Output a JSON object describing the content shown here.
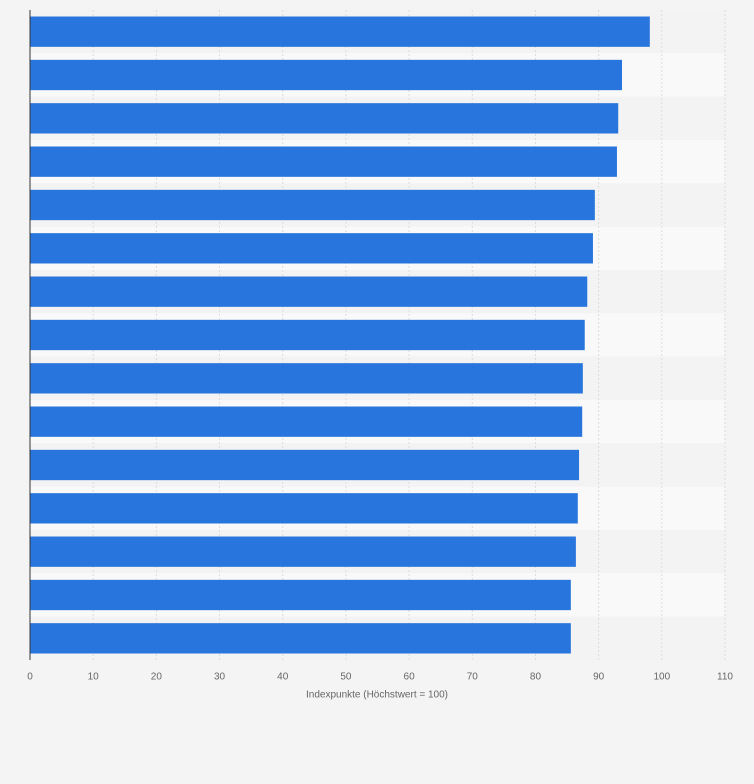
{
  "chart_data": {
    "type": "bar",
    "orientation": "horizontal",
    "x_label": "Indexpunkte (Höchstwert = 100)",
    "categories": [
      null,
      null,
      null,
      null,
      null,
      null,
      null,
      null,
      null,
      null,
      null,
      null,
      null,
      null,
      null
    ],
    "values": [
      98.1,
      93.7,
      93.1,
      92.9,
      89.4,
      89.1,
      88.2,
      87.8,
      87.5,
      87.4,
      86.9,
      86.7,
      86.4,
      85.6,
      85.6
    ],
    "color": "#2876dd",
    "xlim": [
      0,
      110
    ],
    "xticks": [
      0,
      10,
      20,
      30,
      40,
      50,
      60,
      70,
      80,
      90,
      100,
      110
    ],
    "grid": true
  }
}
